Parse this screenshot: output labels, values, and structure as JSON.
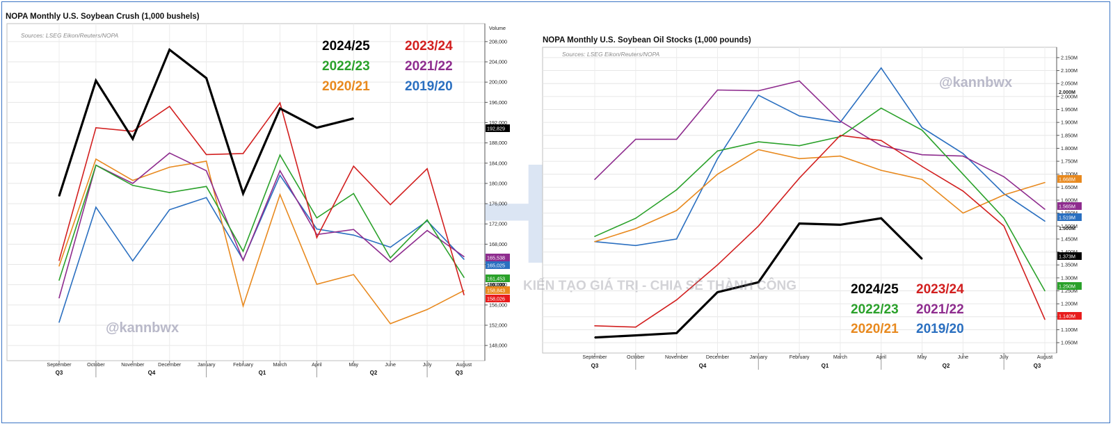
{
  "brand": {
    "text": "HCT",
    "slogan": "KIẾN TẠO GIÁ TRỊ - CHIA SẺ THÀNH CÔNG"
  },
  "chart_data": [
    {
      "type": "line",
      "title": "NOPA Monthly U.S. Soybean Crush (1,000 bushels)",
      "source": "Sources: LSEG Eikon/Reuters/NOPA",
      "watermark": "@kannbwx",
      "ylabel": "Volume",
      "ylim": [
        145000,
        211000
      ],
      "y_ticks": [
        "148,000",
        "152,000",
        "156,000",
        "160,000",
        "164,000",
        "168,000",
        "172,000",
        "176,000",
        "180,000",
        "184,000",
        "188,000",
        "192,000",
        "196,000",
        "200,000",
        "204,000",
        "208,000"
      ],
      "categories": [
        "September",
        "October",
        "November",
        "December",
        "January",
        "February",
        "March",
        "April",
        "May",
        "June",
        "July",
        "August"
      ],
      "quarters": [
        "Q3",
        "Q4",
        "Q1",
        "Q2",
        "Q3"
      ],
      "series": [
        {
          "name": "2024/25",
          "color": "#000000",
          "values": [
            177500,
            200300,
            188800,
            206400,
            200800,
            178000,
            194800,
            191000,
            192829,
            null,
            null,
            null
          ]
        },
        {
          "name": "2023/24",
          "color": "#d21f1f",
          "values": [
            164800,
            191000,
            190300,
            195200,
            185700,
            185900,
            195900,
            169300,
            183400,
            175800,
            182900,
            158026
          ]
        },
        {
          "name": "2022/23",
          "color": "#2aa12a",
          "values": [
            160900,
            183600,
            179600,
            178200,
            179400,
            166600,
            185600,
            173200,
            178000,
            165300,
            172800,
            161453
          ]
        },
        {
          "name": "2021/22",
          "color": "#8e2c8e",
          "values": [
            157400,
            183600,
            180000,
            186000,
            182500,
            164800,
            182500,
            169900,
            170900,
            164500,
            170700,
            165538
          ]
        },
        {
          "name": "2020/21",
          "color": "#e8891e",
          "values": [
            163700,
            184800,
            180600,
            183200,
            184400,
            155800,
            177800,
            160100,
            162000,
            152300,
            155100,
            158843
          ]
        },
        {
          "name": "2019/20",
          "color": "#2a6fc0",
          "values": [
            152600,
            175300,
            164700,
            174800,
            177200,
            164900,
            181600,
            171000,
            169800,
            167400,
            172600,
            165025
          ]
        }
      ],
      "end_labels": [
        {
          "text": "192,829",
          "color": "#000000"
        },
        {
          "text": "165,538",
          "color": "#8e2c8e"
        },
        {
          "text": "165,025",
          "color": "#2a6fc0"
        },
        {
          "text": "161,453",
          "color": "#2aa12a"
        },
        {
          "text": "160,000",
          "color": "none"
        },
        {
          "text": "158,843",
          "color": "#e8891e"
        },
        {
          "text": "158,026",
          "color": "#e81c1c"
        }
      ],
      "legend": [
        {
          "text": "2024/25",
          "color": "#000000"
        },
        {
          "text": "2023/24",
          "color": "#d21f1f"
        },
        {
          "text": "2022/23",
          "color": "#2aa12a"
        },
        {
          "text": "2021/22",
          "color": "#8e2c8e"
        },
        {
          "text": "2020/21",
          "color": "#e8891e"
        },
        {
          "text": "2019/20",
          "color": "#2a6fc0"
        }
      ],
      "legend_position": "top-right",
      "grid": true
    },
    {
      "type": "line",
      "title": "NOPA Monthly U.S. Soybean Oil Stocks (1,000 pounds)",
      "source": "Sources: LSEG Eikon/Reuters/NOPA",
      "watermark": "@kannbwx",
      "ylim": [
        1010000,
        2190000
      ],
      "y_ticks": [
        "1.050M",
        "1.100M",
        "1.150M",
        "1.200M",
        "1.250M",
        "1.300M",
        "1.350M",
        "1.400M",
        "1.450M",
        "1.500M",
        "1.550M",
        "1.600M",
        "1.650M",
        "1.700M",
        "1.750M",
        "1.800M",
        "1.850M",
        "1.900M",
        "1.950M",
        "2.000M",
        "2.050M",
        "2.100M",
        "2.150M"
      ],
      "categories": [
        "September",
        "October",
        "November",
        "December",
        "January",
        "February",
        "March",
        "April",
        "May",
        "June",
        "July",
        "August"
      ],
      "quarters": [
        "Q3",
        "Q4",
        "Q1",
        "Q2",
        "Q3"
      ],
      "series": [
        {
          "name": "2024/25",
          "color": "#000000",
          "values": [
            1070000,
            1078000,
            1087000,
            1245000,
            1283000,
            1510000,
            1505000,
            1530000,
            1373000,
            null,
            null,
            null
          ]
        },
        {
          "name": "2023/24",
          "color": "#d21f1f",
          "values": [
            1115000,
            1110000,
            1215000,
            1350000,
            1500000,
            1685000,
            1850000,
            1830000,
            1730000,
            1635000,
            1500000,
            1140000
          ]
        },
        {
          "name": "2022/23",
          "color": "#2aa12a",
          "values": [
            1460000,
            1530000,
            1640000,
            1790000,
            1825000,
            1810000,
            1845000,
            1955000,
            1870000,
            1700000,
            1530000,
            1250000
          ]
        },
        {
          "name": "2021/22",
          "color": "#8e2c8e",
          "values": [
            1680000,
            1835000,
            1835000,
            2025000,
            2022000,
            2060000,
            1905000,
            1810000,
            1775000,
            1770000,
            1690000,
            1565000
          ]
        },
        {
          "name": "2020/21",
          "color": "#e8891e",
          "values": [
            1440000,
            1490000,
            1560000,
            1700000,
            1795000,
            1760000,
            1770000,
            1715000,
            1680000,
            1550000,
            1620000,
            1668000
          ]
        },
        {
          "name": "2019/20",
          "color": "#2a6fc0",
          "values": [
            1440000,
            1425000,
            1450000,
            1760000,
            2005000,
            1925000,
            1900000,
            2110000,
            1880000,
            1780000,
            1625000,
            1519000
          ]
        }
      ],
      "end_labels": [
        {
          "text": "1.668M",
          "color": "#e8891e"
        },
        {
          "text": "1.565M",
          "color": "#8e2c8e"
        },
        {
          "text": "1.519M",
          "color": "#2a6fc0"
        },
        {
          "text": "1.500M",
          "color": "none"
        },
        {
          "text": "1.373M",
          "color": "#000000"
        },
        {
          "text": "1.250M",
          "color": "#2aa12a"
        },
        {
          "text": "1.140M",
          "color": "#e81c1c"
        },
        {
          "text": "2.000M",
          "color": "none"
        }
      ],
      "legend": [
        {
          "text": "2024/25",
          "color": "#000000"
        },
        {
          "text": "2023/24",
          "color": "#d21f1f"
        },
        {
          "text": "2022/23",
          "color": "#2aa12a"
        },
        {
          "text": "2021/22",
          "color": "#8e2c8e"
        },
        {
          "text": "2020/21",
          "color": "#e8891e"
        },
        {
          "text": "2019/20",
          "color": "#2a6fc0"
        }
      ],
      "legend_position": "bottom-center",
      "grid": true
    }
  ]
}
